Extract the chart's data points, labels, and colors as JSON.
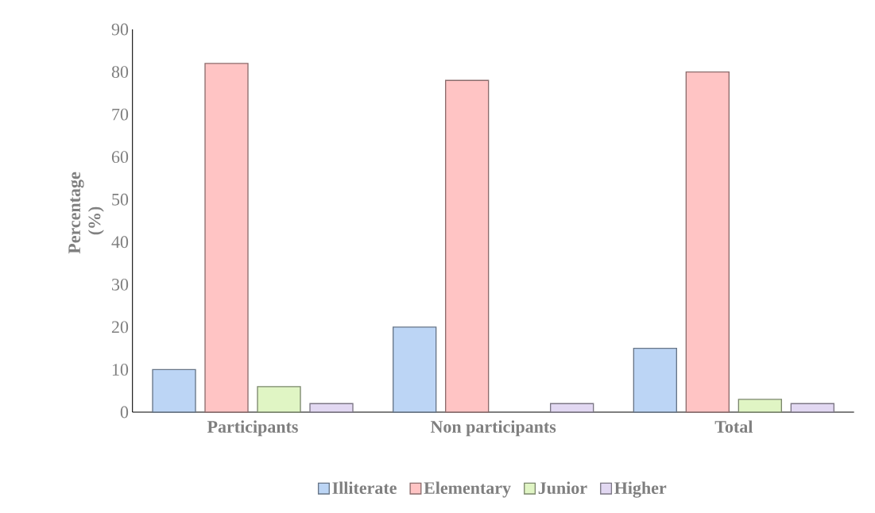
{
  "chart_data": {
    "type": "bar",
    "ylabel": "Percentage (%)",
    "categories": [
      "Participants",
      "Non participants",
      "Total"
    ],
    "series": [
      {
        "name": "Illiterate",
        "color": "#bcd5f5",
        "values": [
          10,
          20,
          15
        ]
      },
      {
        "name": "Elementary",
        "color": "#ffc4c4",
        "values": [
          82,
          78,
          80
        ]
      },
      {
        "name": "Junior",
        "color": "#e0f5c4",
        "values": [
          6,
          null,
          3
        ]
      },
      {
        "name": "Higher",
        "color": "#e2d8f2",
        "values": [
          2,
          2,
          2
        ]
      }
    ],
    "ylim": [
      0,
      90
    ],
    "yticks": [
      0,
      10,
      20,
      30,
      40,
      50,
      60,
      70,
      80,
      90
    ],
    "grid": false,
    "legend": "bottom"
  }
}
